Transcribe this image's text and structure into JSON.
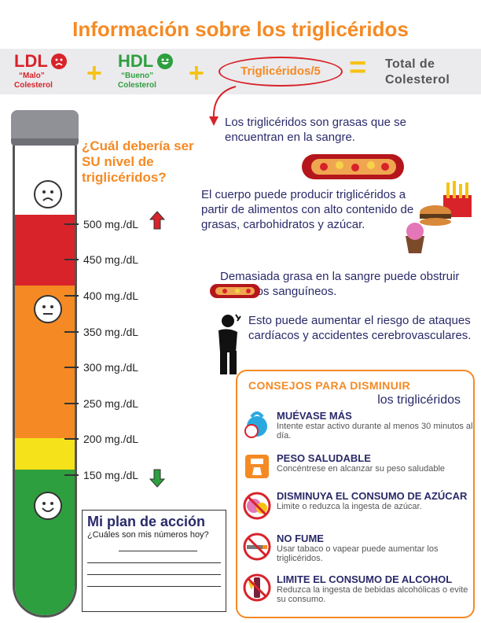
{
  "title": "Información sobre los triglicéridos",
  "formula": {
    "ldl": {
      "label": "LDL",
      "quote": "“Malo”",
      "sub": "Colesterol",
      "color": "#d8232a"
    },
    "hdl": {
      "label": "HDL",
      "quote": "“Bueno”",
      "sub": "Colesterol",
      "color": "#2e9f3f"
    },
    "plus": "+",
    "triglycerides": "Triglicéridos/5",
    "equals": "=",
    "total": [
      "Total de",
      "Colesterol"
    ]
  },
  "question": "¿Cuál debería ser SU nivel de triglicéridos?",
  "levels": [
    "500 mg./dL",
    "450 mg./dL",
    "400 mg./dL",
    "350 mg./dL",
    "300 mg./dL",
    "250 mg./dL",
    "200 mg./dL",
    "150 mg./dL"
  ],
  "facts": [
    "Los triglicéridos son grasas que se encuentran en la sangre.",
    "El cuerpo puede producir triglicéridos a partir de alimentos con alto contenido de grasas, carbohidratos y azúcar.",
    "Demasiada grasa en la sangre puede obstruir los vasos sanguíneos.",
    "Esto puede aumentar el riesgo de ataques cardíacos y accidentes cerebrovasculares."
  ],
  "plan": {
    "title": "Mi plan de acción",
    "question": "¿Cuáles son mis números hoy?"
  },
  "tips": {
    "title": "CONSEJOS PARA DISMINUIR",
    "subtitle": "los triglicéridos",
    "items": [
      {
        "head": "MUÉVASE MÁS",
        "body": "Intente estar activo durante al menos 30 minutos al día.",
        "icon": "kettlebell-timer-icon"
      },
      {
        "head": "PESO SALUDABLE",
        "body": "Concéntrese en alcanzar su peso saludable",
        "icon": "scale-icon"
      },
      {
        "head": "DISMINUYA EL CONSUMO DE AZÚCAR",
        "body": "Limite o reduzca la ingesta de azúcar.",
        "icon": "no-sweets-icon"
      },
      {
        "head": "NO FUME",
        "body": "Usar tabaco o vapear puede aumentar los triglicéridos.",
        "icon": "no-smoking-icon"
      },
      {
        "head": "LIMITE EL CONSUMO DE ALCOHOL",
        "body": "Reduzca la ingesta de bebidas alcohólicas o evite su consumo.",
        "icon": "no-alcohol-icon"
      }
    ]
  },
  "colors": {
    "orange": "#f58a24",
    "red": "#d8232a",
    "green": "#2e9f3f",
    "yellow": "#f6c314",
    "navy": "#2a2a6a"
  }
}
